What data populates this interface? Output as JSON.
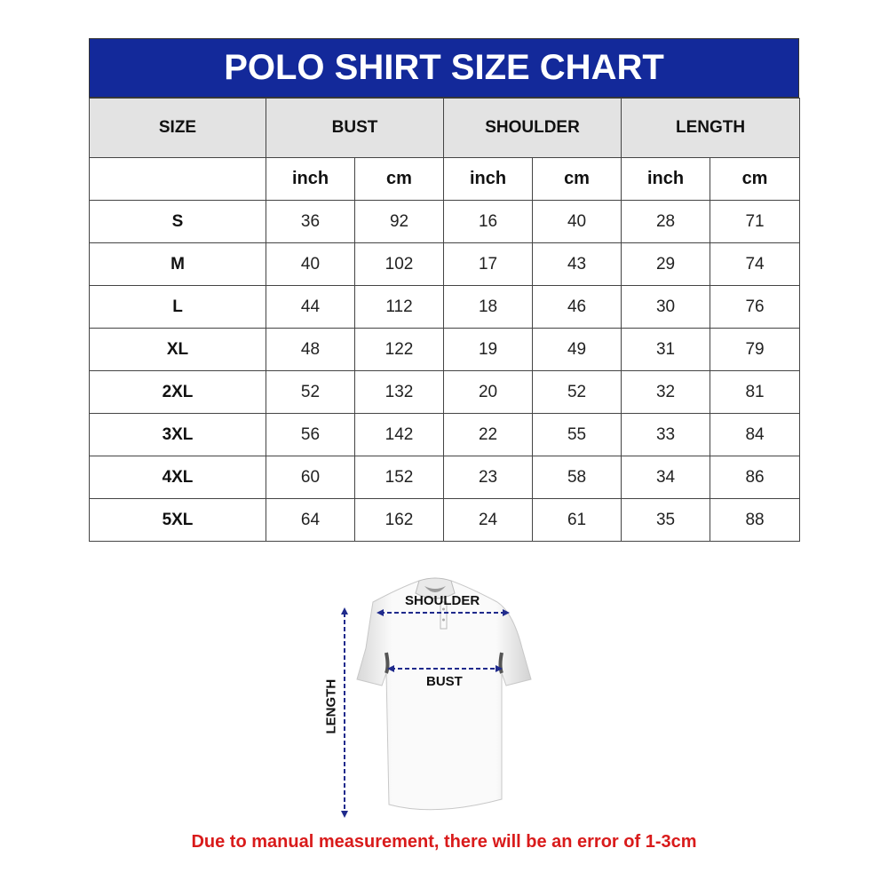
{
  "title": "POLO SHIRT SIZE CHART",
  "headers": [
    "SIZE",
    "BUST",
    "SHOULDER",
    "LENGTH"
  ],
  "units": [
    "inch",
    "cm",
    "inch",
    "cm",
    "inch",
    "cm"
  ],
  "rows": [
    {
      "size": "S",
      "values": [
        "36",
        "92",
        "16",
        "40",
        "28",
        "71"
      ]
    },
    {
      "size": "M",
      "values": [
        "40",
        "102",
        "17",
        "43",
        "29",
        "74"
      ]
    },
    {
      "size": "L",
      "values": [
        "44",
        "112",
        "18",
        "46",
        "30",
        "76"
      ]
    },
    {
      "size": "XL",
      "values": [
        "48",
        "122",
        "19",
        "49",
        "31",
        "79"
      ]
    },
    {
      "size": "2XL",
      "values": [
        "52",
        "132",
        "20",
        "52",
        "32",
        "81"
      ]
    },
    {
      "size": "3XL",
      "values": [
        "56",
        "142",
        "22",
        "55",
        "33",
        "84"
      ]
    },
    {
      "size": "4XL",
      "values": [
        "60",
        "152",
        "23",
        "58",
        "34",
        "86"
      ]
    },
    {
      "size": "5XL",
      "values": [
        "64",
        "162",
        "24",
        "61",
        "35",
        "88"
      ]
    }
  ],
  "diagram": {
    "shoulder": "SHOULDER",
    "bust": "BUST",
    "length": "LENGTH"
  },
  "note": "Due to manual measurement, there will be an error of 1-3cm",
  "colors": {
    "title_bg": "#13299a",
    "header_bg": "#e3e3e3",
    "arrow": "#1f2a8c",
    "note": "#d91b1b"
  }
}
